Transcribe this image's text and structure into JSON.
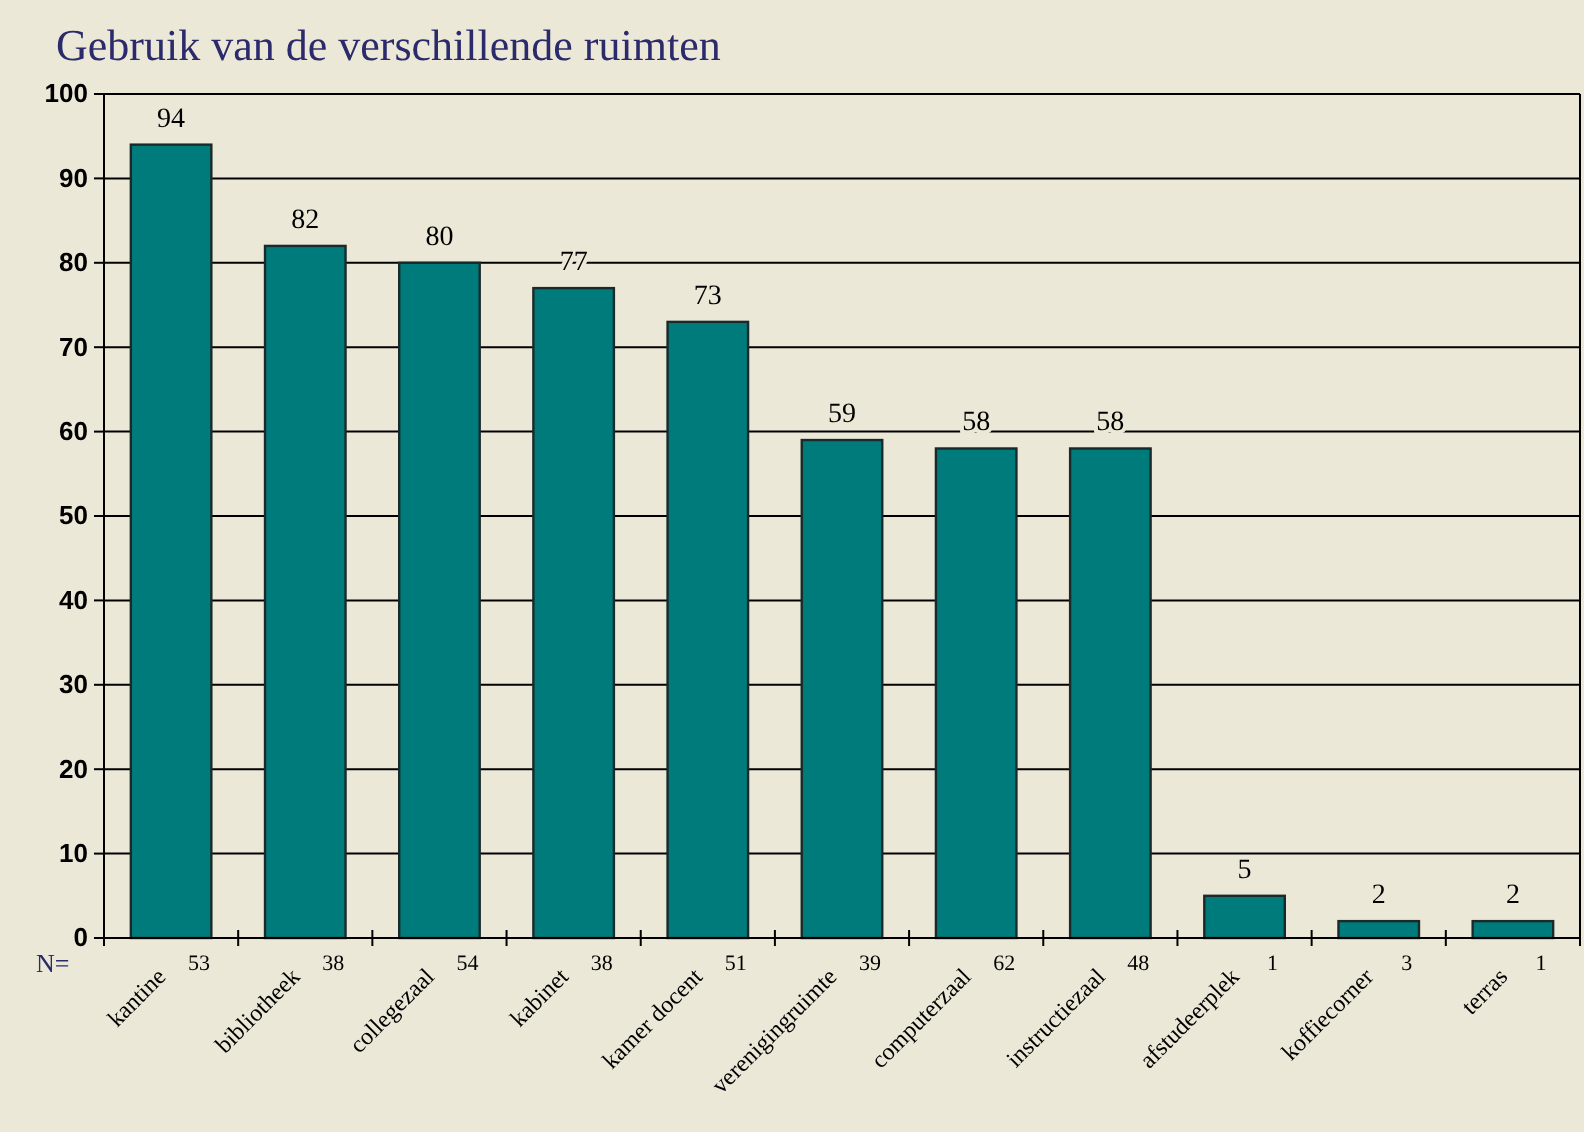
{
  "chart_data": {
    "type": "bar",
    "title": "Gebruik van de verschillende ruimten",
    "categories": [
      "kantine",
      "bibliotheek",
      "collegezaal",
      "kabinet",
      "kamer docent",
      "verenigingruimte",
      "computerzaal",
      "instructiezaal",
      "afstudeerplek",
      "koffiecorner",
      "terras"
    ],
    "values": [
      94,
      82,
      80,
      77,
      73,
      59,
      58,
      58,
      5,
      2,
      2
    ],
    "color": "#007b7b",
    "ylim": [
      0,
      100
    ],
    "yticks": [
      0,
      10,
      20,
      30,
      40,
      50,
      60,
      70,
      80,
      90,
      100
    ],
    "grid": "y",
    "data_labels": true,
    "annotations": [
      "N=",
      "53",
      "38",
      "54",
      "38",
      "51",
      "39",
      "62",
      "48",
      "1",
      "3",
      "1"
    ]
  }
}
